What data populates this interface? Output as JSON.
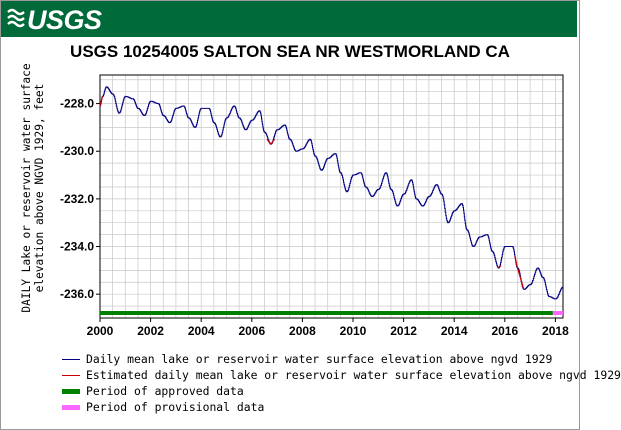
{
  "banner": {
    "logo_text": "USGS",
    "color": "#006a3b"
  },
  "chart_data": {
    "type": "line",
    "title": "USGS 10254005 SALTON SEA NR WESTMORLAND CA",
    "ylabel_line1": "DAILY Lake or reservoir water surface",
    "ylabel_line2": "elevation above NGVD 1929, feet",
    "xlabel": "",
    "xlim": [
      2000.0,
      2018.3
    ],
    "ylim": [
      -237.0,
      -226.8
    ],
    "xticks": [
      2000,
      2002,
      2004,
      2006,
      2008,
      2010,
      2012,
      2014,
      2016,
      2018
    ],
    "xtick_labels": [
      "2000",
      "2002",
      "2004",
      "2006",
      "2008",
      "2010",
      "2012",
      "2014",
      "2016",
      "2018"
    ],
    "yticks": [
      -228.0,
      -230.0,
      -232.0,
      -234.0,
      -236.0
    ],
    "ytick_labels": [
      "-228.0",
      "-230.0",
      "-232.0",
      "-234.0",
      "-236.0"
    ],
    "grid": true,
    "series": [
      {
        "name": "Daily mean lake or reservoir water surface elevation above ngvd 1929",
        "color": "#000080",
        "x": [
          2000.0,
          2000.1,
          2000.25,
          2000.5,
          2000.75,
          2001.0,
          2001.3,
          2001.5,
          2001.75,
          2002.0,
          2002.3,
          2002.5,
          2002.75,
          2003.0,
          2003.3,
          2003.5,
          2003.75,
          2004.0,
          2004.3,
          2004.5,
          2004.75,
          2005.0,
          2005.3,
          2005.5,
          2005.75,
          2006.0,
          2006.3,
          2006.5,
          2006.75,
          2007.0,
          2007.3,
          2007.5,
          2007.75,
          2008.0,
          2008.3,
          2008.5,
          2008.75,
          2009.0,
          2009.3,
          2009.5,
          2009.75,
          2010.0,
          2010.3,
          2010.5,
          2010.75,
          2011.0,
          2011.3,
          2011.5,
          2011.75,
          2012.0,
          2012.3,
          2012.5,
          2012.75,
          2013.0,
          2013.3,
          2013.5,
          2013.75,
          2014.0,
          2014.3,
          2014.5,
          2014.75,
          2015.0,
          2015.3,
          2015.5,
          2015.75,
          2016.0,
          2016.3,
          2016.5,
          2016.75,
          2017.0,
          2017.3,
          2017.5,
          2017.75,
          2018.0,
          2018.3
        ],
        "y": [
          -228.1,
          -227.7,
          -227.3,
          -227.6,
          -228.4,
          -227.7,
          -227.8,
          -228.2,
          -228.5,
          -227.9,
          -228.0,
          -228.5,
          -228.8,
          -228.2,
          -228.1,
          -228.6,
          -229.0,
          -228.2,
          -228.2,
          -228.8,
          -229.4,
          -228.6,
          -228.1,
          -228.6,
          -229.1,
          -228.7,
          -228.3,
          -229.2,
          -229.7,
          -229.1,
          -228.9,
          -229.5,
          -230.0,
          -229.9,
          -229.5,
          -230.2,
          -230.8,
          -230.3,
          -230.1,
          -230.9,
          -231.7,
          -231.0,
          -230.9,
          -231.5,
          -231.9,
          -231.6,
          -230.9,
          -231.6,
          -232.3,
          -231.8,
          -231.2,
          -232.0,
          -232.3,
          -231.9,
          -231.4,
          -231.8,
          -233.0,
          -232.5,
          -232.2,
          -233.3,
          -234.0,
          -233.6,
          -233.5,
          -234.2,
          -234.9,
          -234.0,
          -234.0,
          -234.9,
          -235.8,
          -235.6,
          -234.9,
          -235.3,
          -236.1,
          -236.2,
          -235.7
        ]
      },
      {
        "name": "Estimated daily mean lake or reservoir water surface elevation above ngvd 1929",
        "color": "#cc0000",
        "segments": [
          {
            "x": [
              2000.0,
              2000.1
            ],
            "y": [
              -228.1,
              -227.7
            ]
          },
          {
            "x": [
              2006.6,
              2006.75,
              2006.9
            ],
            "y": [
              -229.5,
              -229.7,
              -229.5
            ]
          },
          {
            "x": [
              2015.75,
              2015.85
            ],
            "y": [
              -234.9,
              -234.8
            ]
          },
          {
            "x": [
              2016.4,
              2016.5,
              2016.75
            ],
            "y": [
              -234.4,
              -234.9,
              -235.8
            ]
          }
        ]
      }
    ],
    "periods": [
      {
        "name": "Period of approved data",
        "color": "#008000",
        "x": [
          2000.0,
          2017.9
        ]
      },
      {
        "name": "Period of provisional data",
        "color": "#ff66ff",
        "x": [
          2017.9,
          2018.3
        ]
      }
    ]
  },
  "legend": [
    {
      "label": "Daily mean lake or reservoir water surface elevation above ngvd 1929",
      "color": "#000080",
      "thick": false
    },
    {
      "label": "Estimated daily mean lake or reservoir water surface elevation above ngvd 1929",
      "color": "#cc0000",
      "thick": false
    },
    {
      "label": "Period of approved data",
      "color": "#008000",
      "thick": true
    },
    {
      "label": "Period of provisional data",
      "color": "#ff66ff",
      "thick": true
    }
  ]
}
